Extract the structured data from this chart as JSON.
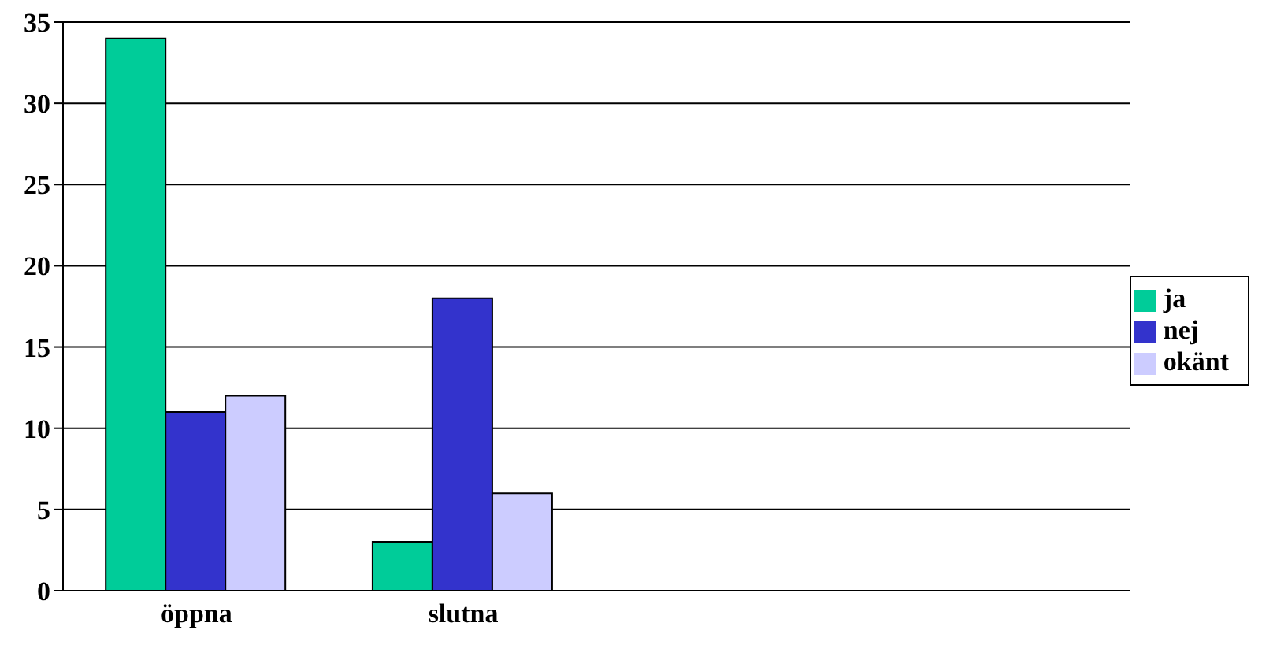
{
  "chart_data": {
    "type": "bar",
    "categories": [
      "öppna",
      "slutna",
      null,
      null
    ],
    "series": [
      {
        "name": "ja",
        "color": "#00cc99",
        "values": [
          34,
          3,
          null,
          null
        ]
      },
      {
        "name": "nej",
        "color": "#3333cc",
        "values": [
          11,
          18,
          null,
          null
        ]
      },
      {
        "name": "okänt",
        "color": "#ccccff",
        "values": [
          12,
          6,
          null,
          null
        ]
      }
    ],
    "ylim": [
      0,
      35
    ],
    "yticks": [
      0,
      5,
      10,
      15,
      20,
      25,
      30,
      35
    ],
    "grid": "y",
    "legend": "right"
  }
}
